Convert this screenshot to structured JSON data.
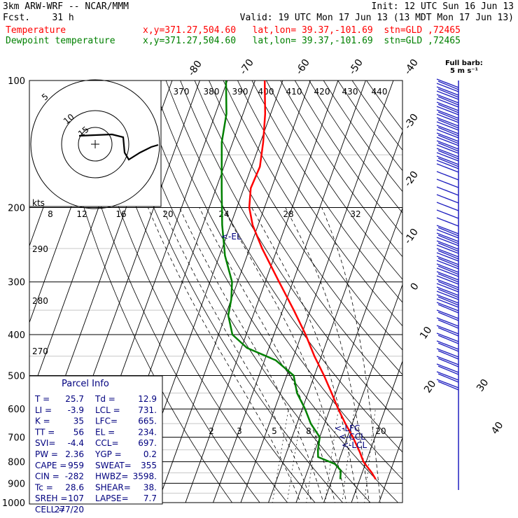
{
  "header": {
    "model": "3km ARW-WRF -- NCAR/MMM",
    "fcst": "Fcst.    31 h",
    "init": "Init: 12 UTC Sun 16 Jun 13",
    "valid": "Valid: 19 UTC Mon 17 Jun 13 (13 MDT Mon 17 Jun 13)",
    "temp_label": "Temperature",
    "dew_label": "Dewpoint temperature",
    "temp_loc": "x,y=371.27,504.60   lat,lon= 39.37,-101.69  stn=GLD ,72465",
    "dew_loc": "x,y=371.27,504.60   lat,lon= 39.37,-101.69  stn=GLD ,72465"
  },
  "colors": {
    "temperature": "#ff0000",
    "dewpoint": "#008000",
    "text": "#00007f",
    "barbs": "#2020c0"
  },
  "chart_data": {
    "type": "line",
    "chart_kind": "skew-T log-p sounding",
    "y_scale": "log pressure",
    "ylabel_unit": "hPa",
    "ylim": [
      1000,
      100
    ],
    "pressure_ticks": [
      100,
      200,
      300,
      400,
      500,
      600,
      700,
      800,
      900,
      1000
    ],
    "isotherm_labels": [
      "-80",
      "-70",
      "-60",
      "-50",
      "-40",
      "-30",
      "-20",
      "-10",
      "0",
      "10",
      "20",
      "30",
      "40"
    ],
    "theta_e_labels": [
      "370",
      "380",
      "390",
      "400",
      "410",
      "420",
      "430",
      "440"
    ],
    "theta_labels": [
      "290",
      "280",
      "270"
    ],
    "mixing_ratio_labels": [
      "2",
      "3",
      "5",
      "8",
      "20"
    ],
    "hodograph": {
      "units_label": "kts",
      "ring_labels": [
        "5",
        "10",
        "15"
      ],
      "axis_labels": [
        "8",
        "12",
        "16",
        "20",
        "24",
        "28",
        "32"
      ]
    },
    "levels_label": {
      "el": "<-EL",
      "lfc": "<-LFC",
      "ccl": "<-CCL",
      "lcl": "<-LCL"
    },
    "barb_key": {
      "title": "Full barb:",
      "value": "5 m s⁻¹"
    },
    "series": [
      {
        "name": "Temperature",
        "points": [
          {
            "p": 880,
            "t": 25.7
          },
          {
            "p": 850,
            "t": 23.5
          },
          {
            "p": 800,
            "t": 19.0
          },
          {
            "p": 760,
            "t": 16.5
          },
          {
            "p": 700,
            "t": 12.0
          },
          {
            "p": 650,
            "t": 7.5
          },
          {
            "p": 600,
            "t": 3.0
          },
          {
            "p": 550,
            "t": -1.5
          },
          {
            "p": 500,
            "t": -6.5
          },
          {
            "p": 450,
            "t": -12.5
          },
          {
            "p": 400,
            "t": -18.5
          },
          {
            "p": 350,
            "t": -26.0
          },
          {
            "p": 300,
            "t": -35.0
          },
          {
            "p": 250,
            "t": -45.5
          },
          {
            "p": 220,
            "t": -52.0
          },
          {
            "p": 200,
            "t": -55.5
          },
          {
            "p": 180,
            "t": -57.5
          },
          {
            "p": 160,
            "t": -57.0
          },
          {
            "p": 140,
            "t": -59.0
          },
          {
            "p": 120,
            "t": -62.0
          },
          {
            "p": 100,
            "t": -66.5
          }
        ]
      },
      {
        "name": "Dewpoint temperature",
        "points": [
          {
            "p": 880,
            "t": 12.9
          },
          {
            "p": 840,
            "t": 12.0
          },
          {
            "p": 810,
            "t": 9.0
          },
          {
            "p": 780,
            "t": 2.0
          },
          {
            "p": 750,
            "t": 1.0
          },
          {
            "p": 700,
            "t": 0.0
          },
          {
            "p": 650,
            "t": -5.0
          },
          {
            "p": 600,
            "t": -9.0
          },
          {
            "p": 550,
            "t": -14.0
          },
          {
            "p": 500,
            "t": -17.5
          },
          {
            "p": 460,
            "t": -26.0
          },
          {
            "p": 430,
            "t": -38.0
          },
          {
            "p": 400,
            "t": -45.0
          },
          {
            "p": 360,
            "t": -49.0
          },
          {
            "p": 330,
            "t": -50.0
          },
          {
            "p": 300,
            "t": -52.0
          },
          {
            "p": 260,
            "t": -58.0
          },
          {
            "p": 220,
            "t": -63.0
          },
          {
            "p": 180,
            "t": -68.0
          },
          {
            "p": 140,
            "t": -74.0
          },
          {
            "p": 120,
            "t": -76.0
          },
          {
            "p": 100,
            "t": -80.5
          }
        ]
      }
    ],
    "parcel_info": {
      "title": "Parcel Info",
      "rows": [
        [
          "T  =",
          "25.7",
          "Td =",
          "12.9"
        ],
        [
          "LI =",
          "-3.9",
          "LCL =",
          "731."
        ],
        [
          "K  =",
          "35",
          "LFC=",
          "665."
        ],
        [
          "TT =",
          "56",
          "EL =",
          "234."
        ],
        [
          "SVI=",
          "-4.4",
          "CCL=",
          "697."
        ],
        [
          "PW =",
          "2.36",
          "YGP =",
          "0.2"
        ],
        [
          "CAPE =",
          "959",
          "SWEAT=",
          "355"
        ],
        [
          "CIN =",
          "-282",
          "HWBZ=",
          "3598."
        ],
        [
          "Tc =",
          "28.6",
          "SHEAR=",
          "38."
        ],
        [
          "SREH =",
          "107",
          "LAPSE=",
          "7.7"
        ],
        [
          "CELL =",
          "277/20",
          "",
          ""
        ]
      ]
    }
  }
}
